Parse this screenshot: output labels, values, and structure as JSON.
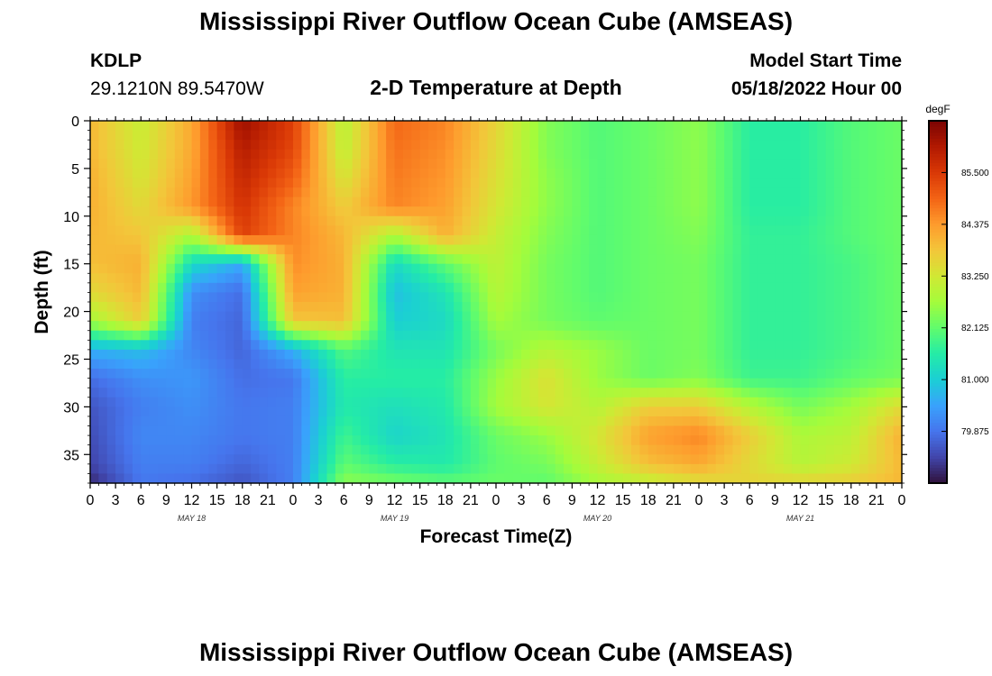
{
  "page": {
    "title": "Mississippi River Outflow Ocean Cube (AMSEAS)",
    "footer_title": "Mississippi River Outflow Ocean Cube (AMSEAS)",
    "station": {
      "id": "KDLP",
      "coords": "29.1210N  89.5470W"
    },
    "subtitle": "2-D Temperature at Depth",
    "model_start": {
      "label": "Model Start Time",
      "value": "05/18/2022 Hour 00"
    }
  },
  "chart_data": {
    "type": "heatmap",
    "title": "2-D Temperature at Depth",
    "xlabel": "Forecast Time(Z)",
    "ylabel": "Depth (ft)",
    "x_tick_labels": [
      "0",
      "3",
      "6",
      "9",
      "12",
      "15",
      "18",
      "21",
      "0",
      "3",
      "6",
      "9",
      "12",
      "15",
      "18",
      "21",
      "0",
      "3",
      "6",
      "9",
      "12",
      "15",
      "18",
      "21",
      "0",
      "3",
      "6",
      "9",
      "12",
      "15",
      "18",
      "21",
      "0"
    ],
    "date_labels": [
      "MAY 18",
      "MAY 19",
      "MAY 20",
      "MAY 21"
    ],
    "xlim_hours": [
      0,
      96
    ],
    "y_ticks": [
      0,
      5,
      10,
      15,
      20,
      25,
      30,
      35
    ],
    "ylim": [
      0,
      38
    ],
    "y_inverted": true,
    "colorbar": {
      "unit": "degF",
      "tick_labels": [
        "85.500",
        "84.375",
        "83.250",
        "82.125",
        "81.000",
        "79.875"
      ],
      "ticks": [
        85.5,
        84.375,
        83.25,
        82.125,
        81.0,
        79.875
      ],
      "range": [
        78.75,
        86.625
      ],
      "colors": [
        "#30123b",
        "#4145ab",
        "#4675ed",
        "#39a2fc",
        "#1bcfd4",
        "#24eca6",
        "#61fc6c",
        "#a4fc3b",
        "#d1e834",
        "#f3c63a",
        "#fe9b2d",
        "#f36315",
        "#d93806",
        "#b11901",
        "#7a0403"
      ]
    },
    "depths_ft": [
      0,
      3,
      6,
      9,
      12,
      15,
      18,
      21,
      24,
      27,
      30,
      33,
      36,
      38
    ],
    "times_hours": [
      0,
      6,
      12,
      18,
      24,
      30,
      36,
      42,
      48,
      54,
      60,
      66,
      72,
      78,
      84,
      90,
      96
    ],
    "temperature_degF": [
      [
        84.0,
        83.1,
        84.2,
        86.3,
        85.4,
        82.9,
        84.9,
        84.6,
        83.6,
        82.4,
        82.0,
        82.2,
        82.5,
        81.6,
        81.6,
        82.0,
        82.2
      ],
      [
        84.0,
        83.2,
        84.2,
        86.0,
        85.3,
        83.0,
        84.8,
        84.5,
        83.5,
        82.4,
        82.0,
        82.2,
        82.5,
        81.6,
        81.6,
        82.0,
        82.2
      ],
      [
        84.1,
        83.3,
        84.3,
        85.8,
        85.0,
        83.3,
        84.7,
        84.4,
        83.4,
        82.5,
        82.0,
        82.2,
        82.5,
        81.6,
        81.6,
        82.0,
        82.2
      ],
      [
        84.1,
        83.5,
        84.4,
        85.6,
        84.6,
        83.7,
        84.6,
        84.3,
        83.3,
        82.5,
        82.0,
        82.2,
        82.5,
        81.6,
        81.6,
        82.0,
        82.2
      ],
      [
        84.0,
        83.8,
        82.8,
        85.4,
        84.6,
        84.0,
        82.8,
        84.1,
        83.1,
        82.4,
        82.0,
        82.2,
        82.4,
        81.7,
        81.7,
        82.0,
        82.2
      ],
      [
        83.9,
        84.1,
        81.2,
        80.5,
        84.5,
        84.1,
        81.2,
        82.1,
        83.0,
        82.3,
        82.0,
        82.2,
        82.3,
        81.7,
        81.7,
        81.9,
        82.2
      ],
      [
        83.5,
        84.0,
        80.2,
        79.8,
        84.3,
        84.1,
        80.8,
        81.4,
        82.9,
        82.3,
        82.0,
        82.2,
        82.3,
        81.7,
        81.7,
        81.9,
        82.2
      ],
      [
        82.7,
        83.7,
        80.0,
        79.7,
        83.8,
        83.9,
        81.0,
        81.2,
        82.7,
        82.3,
        82.1,
        82.2,
        82.3,
        81.7,
        81.7,
        81.9,
        82.2
      ],
      [
        80.6,
        80.8,
        80.1,
        79.7,
        80.6,
        82.0,
        81.4,
        81.4,
        82.3,
        82.9,
        82.6,
        82.2,
        82.3,
        81.7,
        81.7,
        81.9,
        82.2
      ],
      [
        79.8,
        80.2,
        80.3,
        79.8,
        79.9,
        81.6,
        81.6,
        81.6,
        82.6,
        83.4,
        82.6,
        82.2,
        82.4,
        81.8,
        81.8,
        82.1,
        82.3
      ],
      [
        79.5,
        80.0,
        80.2,
        79.9,
        80.0,
        81.5,
        81.3,
        81.5,
        82.7,
        83.3,
        82.9,
        83.7,
        83.7,
        82.9,
        82.3,
        82.7,
        83.5
      ],
      [
        79.4,
        80.1,
        80.1,
        79.9,
        80.0,
        81.8,
        81.1,
        81.4,
        82.2,
        82.6,
        83.3,
        84.3,
        84.6,
        83.7,
        82.8,
        83.0,
        84.1
      ],
      [
        79.3,
        80.0,
        80.0,
        79.7,
        80.0,
        82.1,
        81.6,
        81.5,
        82.1,
        82.3,
        83.1,
        83.9,
        84.2,
        83.5,
        82.9,
        83.2,
        84.0
      ],
      [
        79.0,
        79.9,
        79.8,
        79.5,
        80.0,
        82.5,
        82.3,
        82.1,
        82.2,
        82.1,
        82.7,
        83.0,
        83.4,
        83.6,
        83.6,
        83.7,
        84.0
      ]
    ]
  }
}
